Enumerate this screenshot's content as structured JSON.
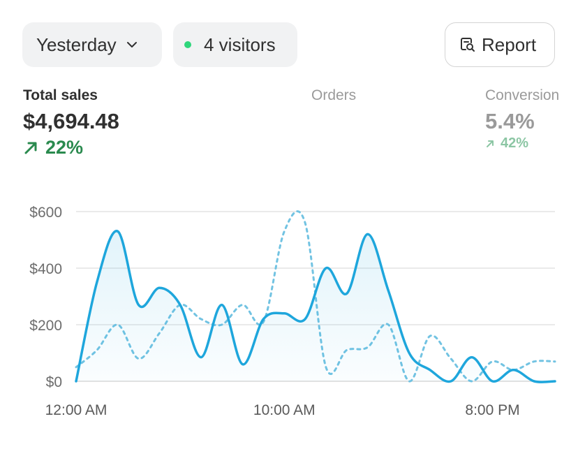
{
  "filters": {
    "date_label": "Yesterday",
    "visitors_label": "4 visitors",
    "report_label": "Report"
  },
  "metrics": {
    "sales": {
      "label": "Total sales",
      "value": "$4,694.48",
      "change": "22%"
    },
    "orders": {
      "label": "Orders"
    },
    "conversion": {
      "label": "Conversion",
      "value": "5.4%",
      "change": "42%"
    }
  },
  "colors": {
    "primary_line": "#1ea6dc",
    "comparison_line": "#72c3e2",
    "positive": "#2a8a4e",
    "live_dot": "#2fd67b"
  },
  "chart_data": {
    "type": "line",
    "x": [
      0,
      1,
      2,
      3,
      4,
      5,
      6,
      7,
      8,
      9,
      10,
      11,
      12,
      13,
      14,
      15,
      16,
      17,
      18,
      19,
      20,
      21,
      22,
      23
    ],
    "xticks": [
      {
        "x": 0,
        "label": "12:00 AM"
      },
      {
        "x": 10,
        "label": "10:00 AM"
      },
      {
        "x": 20,
        "label": "8:00 PM"
      }
    ],
    "yticks": [
      {
        "y": 0,
        "label": "$0"
      },
      {
        "y": 200,
        "label": "$200"
      },
      {
        "y": 400,
        "label": "$400"
      },
      {
        "y": 600,
        "label": "$600"
      }
    ],
    "ylim": [
      0,
      600
    ],
    "xlim": [
      0,
      23
    ],
    "grid": true,
    "series": [
      {
        "style": "solid-area",
        "values": [
          0,
          350,
          530,
          270,
          330,
          270,
          85,
          270,
          60,
          220,
          240,
          220,
          400,
          310,
          520,
          320,
          100,
          40,
          0,
          85,
          0,
          40,
          0,
          0
        ]
      },
      {
        "style": "dashed",
        "values": [
          50,
          110,
          200,
          80,
          170,
          270,
          220,
          200,
          270,
          210,
          530,
          560,
          50,
          110,
          120,
          200,
          0,
          160,
          80,
          0,
          70,
          40,
          70,
          70
        ]
      }
    ]
  }
}
